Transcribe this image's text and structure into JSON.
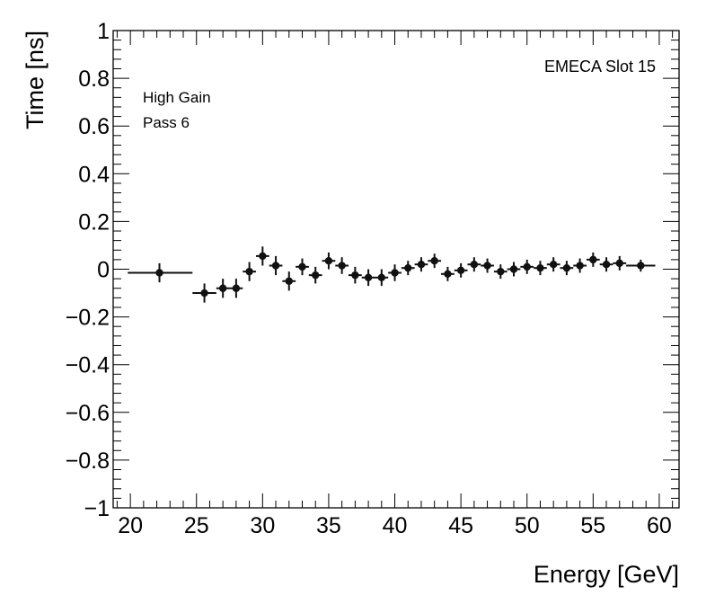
{
  "chart_data": {
    "type": "scatter",
    "title": "",
    "xlabel": "Energy [GeV]",
    "ylabel": "Time [ns]",
    "xlim": [
      18.7,
      61.5
    ],
    "ylim": [
      -1,
      1
    ],
    "xticks": [
      20,
      25,
      30,
      35,
      40,
      45,
      50,
      55,
      60
    ],
    "xtick_labels": [
      "20",
      "25",
      "30",
      "35",
      "40",
      "45",
      "50",
      "55",
      "60"
    ],
    "yticks": [
      -1,
      -0.8,
      -0.6,
      -0.4,
      -0.2,
      0,
      0.2,
      0.4,
      0.6,
      0.8,
      1
    ],
    "ytick_labels": [
      "−1",
      "−0.8",
      "−0.6",
      "−0.4",
      "−0.2",
      "0",
      "0.2",
      "0.4",
      "0.6",
      "0.8",
      "1"
    ],
    "annotations": {
      "slot": "EMECA Slot 15",
      "gain": "High Gain",
      "pass": "Pass 6"
    },
    "series": [
      {
        "name": "EMECA Slot 15",
        "points": [
          {
            "x": 22.2,
            "y": -0.015,
            "xerr_lo": 2.4,
            "xerr_hi": 2.5,
            "yerr": 0.04
          },
          {
            "x": 25.6,
            "y": -0.1,
            "xerr_lo": 0.9,
            "xerr_hi": 0.9,
            "yerr": 0.04
          },
          {
            "x": 27.0,
            "y": -0.08,
            "xerr_lo": 0.5,
            "xerr_hi": 0.5,
            "yerr": 0.04
          },
          {
            "x": 28.0,
            "y": -0.08,
            "xerr_lo": 0.5,
            "xerr_hi": 0.5,
            "yerr": 0.04
          },
          {
            "x": 29.0,
            "y": -0.01,
            "xerr_lo": 0.5,
            "xerr_hi": 0.5,
            "yerr": 0.04
          },
          {
            "x": 30.0,
            "y": 0.055,
            "xerr_lo": 0.5,
            "xerr_hi": 0.5,
            "yerr": 0.04
          },
          {
            "x": 31.0,
            "y": 0.015,
            "xerr_lo": 0.5,
            "xerr_hi": 0.5,
            "yerr": 0.04
          },
          {
            "x": 32.0,
            "y": -0.05,
            "xerr_lo": 0.5,
            "xerr_hi": 0.5,
            "yerr": 0.04
          },
          {
            "x": 33.0,
            "y": 0.01,
            "xerr_lo": 0.5,
            "xerr_hi": 0.5,
            "yerr": 0.035
          },
          {
            "x": 34.0,
            "y": -0.025,
            "xerr_lo": 0.5,
            "xerr_hi": 0.5,
            "yerr": 0.035
          },
          {
            "x": 35.0,
            "y": 0.035,
            "xerr_lo": 0.5,
            "xerr_hi": 0.5,
            "yerr": 0.035
          },
          {
            "x": 36.0,
            "y": 0.015,
            "xerr_lo": 0.5,
            "xerr_hi": 0.5,
            "yerr": 0.035
          },
          {
            "x": 37.0,
            "y": -0.025,
            "xerr_lo": 0.5,
            "xerr_hi": 0.5,
            "yerr": 0.035
          },
          {
            "x": 38.0,
            "y": -0.035,
            "xerr_lo": 0.5,
            "xerr_hi": 0.5,
            "yerr": 0.035
          },
          {
            "x": 39.0,
            "y": -0.035,
            "xerr_lo": 0.5,
            "xerr_hi": 0.5,
            "yerr": 0.035
          },
          {
            "x": 40.0,
            "y": -0.015,
            "xerr_lo": 0.5,
            "xerr_hi": 0.5,
            "yerr": 0.035
          },
          {
            "x": 41.0,
            "y": 0.005,
            "xerr_lo": 0.5,
            "xerr_hi": 0.5,
            "yerr": 0.03
          },
          {
            "x": 42.0,
            "y": 0.02,
            "xerr_lo": 0.5,
            "xerr_hi": 0.5,
            "yerr": 0.03
          },
          {
            "x": 43.0,
            "y": 0.035,
            "xerr_lo": 0.5,
            "xerr_hi": 0.5,
            "yerr": 0.03
          },
          {
            "x": 44.0,
            "y": -0.02,
            "xerr_lo": 0.5,
            "xerr_hi": 0.5,
            "yerr": 0.03
          },
          {
            "x": 45.0,
            "y": -0.005,
            "xerr_lo": 0.5,
            "xerr_hi": 0.5,
            "yerr": 0.03
          },
          {
            "x": 46.0,
            "y": 0.02,
            "xerr_lo": 0.5,
            "xerr_hi": 0.5,
            "yerr": 0.03
          },
          {
            "x": 47.0,
            "y": 0.015,
            "xerr_lo": 0.5,
            "xerr_hi": 0.5,
            "yerr": 0.03
          },
          {
            "x": 48.0,
            "y": -0.01,
            "xerr_lo": 0.5,
            "xerr_hi": 0.5,
            "yerr": 0.03
          },
          {
            "x": 49.0,
            "y": 0.0,
            "xerr_lo": 0.5,
            "xerr_hi": 0.5,
            "yerr": 0.03
          },
          {
            "x": 50.0,
            "y": 0.01,
            "xerr_lo": 0.5,
            "xerr_hi": 0.5,
            "yerr": 0.03
          },
          {
            "x": 51.0,
            "y": 0.005,
            "xerr_lo": 0.5,
            "xerr_hi": 0.5,
            "yerr": 0.03
          },
          {
            "x": 52.0,
            "y": 0.02,
            "xerr_lo": 0.5,
            "xerr_hi": 0.5,
            "yerr": 0.03
          },
          {
            "x": 53.0,
            "y": 0.005,
            "xerr_lo": 0.5,
            "xerr_hi": 0.5,
            "yerr": 0.03
          },
          {
            "x": 54.0,
            "y": 0.015,
            "xerr_lo": 0.5,
            "xerr_hi": 0.5,
            "yerr": 0.03
          },
          {
            "x": 55.0,
            "y": 0.04,
            "xerr_lo": 0.5,
            "xerr_hi": 0.5,
            "yerr": 0.03
          },
          {
            "x": 56.0,
            "y": 0.02,
            "xerr_lo": 0.5,
            "xerr_hi": 0.5,
            "yerr": 0.03
          },
          {
            "x": 57.0,
            "y": 0.025,
            "xerr_lo": 0.5,
            "xerr_hi": 0.5,
            "yerr": 0.03
          },
          {
            "x": 58.6,
            "y": 0.015,
            "xerr_lo": 1.1,
            "xerr_hi": 1.1,
            "yerr": 0.025
          }
        ]
      }
    ],
    "colors": {
      "marker": "#111111",
      "axis": "#000000",
      "background": "#ffffff"
    },
    "grid": false,
    "legend": "none"
  }
}
